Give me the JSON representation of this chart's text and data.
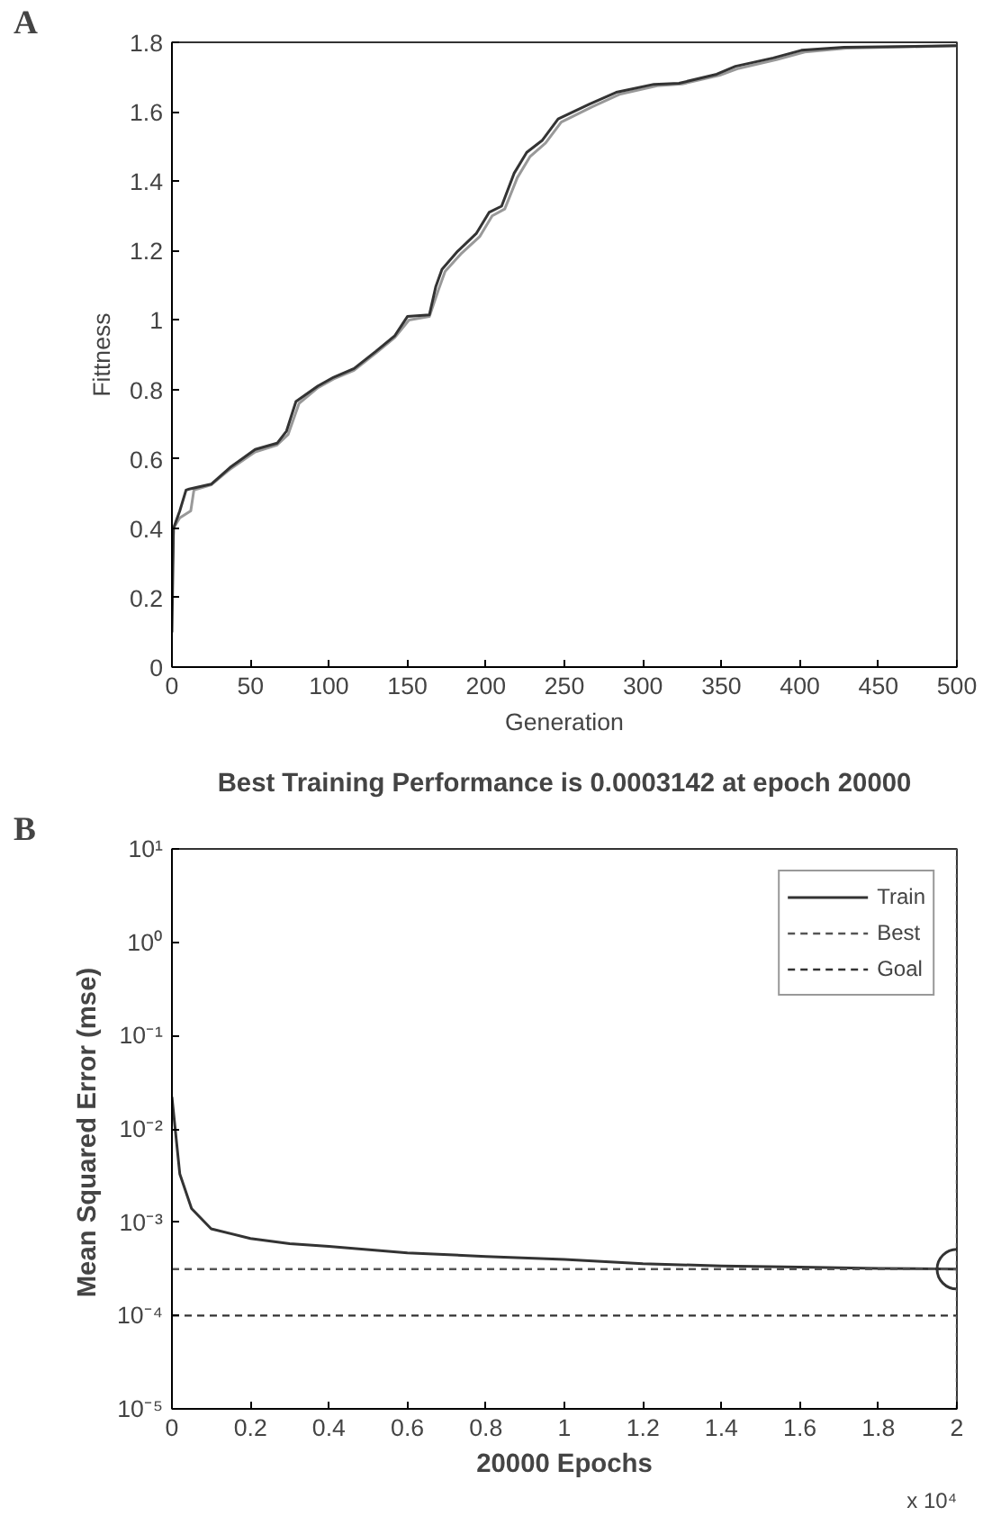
{
  "chart_data": [
    {
      "type": "line",
      "xlabel": "Generation",
      "ylabel": "Fittness",
      "annotations": [
        "A"
      ],
      "xlim": [
        0,
        500
      ],
      "ylim": [
        0,
        1.8
      ],
      "xticks": [
        0,
        50,
        100,
        150,
        200,
        250,
        300,
        350,
        400,
        450,
        500
      ],
      "yticks": [
        0,
        0.2,
        0.4,
        0.6,
        0.8,
        1,
        1.2,
        1.4,
        1.6,
        1.8
      ],
      "grid": false,
      "legend": false,
      "series": [
        {
          "color": "#999999",
          "x": [
            0,
            1,
            5,
            12,
            14,
            25,
            37,
            53,
            67,
            74,
            81,
            93,
            103,
            116,
            130,
            142,
            151,
            164,
            170,
            174,
            184,
            196,
            204,
            212,
            220,
            228,
            238,
            248,
            268,
            285,
            309,
            325,
            349,
            361,
            385,
            403,
            430,
            500
          ],
          "values": [
            0.25,
            0.4,
            0.43,
            0.45,
            0.51,
            0.525,
            0.57,
            0.62,
            0.64,
            0.67,
            0.76,
            0.805,
            0.83,
            0.855,
            0.905,
            0.95,
            1.0,
            1.01,
            1.09,
            1.14,
            1.19,
            1.24,
            1.3,
            1.32,
            1.41,
            1.47,
            1.51,
            1.57,
            1.615,
            1.65,
            1.675,
            1.68,
            1.705,
            1.725,
            1.75,
            1.772,
            1.783,
            1.79
          ]
        },
        {
          "color": "#333333",
          "x": [
            0,
            1,
            5,
            9,
            11,
            25,
            37,
            53,
            67,
            73,
            79,
            93,
            103,
            116,
            130,
            142,
            150,
            164,
            168,
            172,
            182,
            194,
            202,
            210,
            218,
            226,
            236,
            246,
            266,
            283,
            307,
            323,
            347,
            359,
            383,
            401,
            428,
            500
          ],
          "values": [
            0.1,
            0.4,
            0.45,
            0.51,
            0.513,
            0.527,
            0.575,
            0.627,
            0.645,
            0.68,
            0.765,
            0.81,
            0.835,
            0.86,
            0.91,
            0.955,
            1.01,
            1.015,
            1.095,
            1.146,
            1.198,
            1.25,
            1.31,
            1.328,
            1.423,
            1.483,
            1.518,
            1.579,
            1.622,
            1.656,
            1.679,
            1.682,
            1.708,
            1.731,
            1.755,
            1.777,
            1.786,
            1.79
          ]
        }
      ]
    },
    {
      "type": "line",
      "title": "Best Training Performance is 0.0003142 at epoch 20000",
      "xlabel": "20000 Epochs",
      "ylabel": "Mean Squared Error  (mse)",
      "annotations": [
        "B",
        "x 10⁴"
      ],
      "log": "y",
      "xlim": [
        0,
        2
      ],
      "ylim": [
        1e-05,
        10
      ],
      "xticks": [
        0,
        0.2,
        0.4,
        0.6,
        0.8,
        1,
        1.2,
        1.4,
        1.6,
        1.8,
        2
      ],
      "yticks": [
        {
          "value": 1e-05,
          "label": "10⁻⁵"
        },
        {
          "value": 0.0001,
          "label": "10⁻⁴"
        },
        {
          "value": 0.001,
          "label": "10⁻³"
        },
        {
          "value": 0.01,
          "label": "10⁻²"
        },
        {
          "value": 0.1,
          "label": "10⁻¹"
        },
        {
          "value": 1,
          "label": "10⁰"
        },
        {
          "value": 10,
          "label": "10¹"
        }
      ],
      "grid": false,
      "legend": "top right",
      "series": [
        {
          "name": "Train",
          "color": "#333333",
          "x": [
            0,
            0.02,
            0.05,
            0.1,
            0.2,
            0.3,
            0.4,
            0.6,
            0.8,
            1.0,
            1.2,
            1.4,
            1.6,
            1.8,
            2.0
          ],
          "values": [
            0.022,
            0.0033,
            0.0014,
            0.00085,
            0.00067,
            0.00059,
            0.00055,
            0.00047,
            0.00043,
            0.0004,
            0.00036,
            0.00034,
            0.00033,
            0.00032,
            0.0003142
          ]
        },
        {
          "type": "scatter",
          "marker": "circle",
          "color": "#333333",
          "x": [
            2
          ],
          "values": [
            0.0003142
          ]
        }
      ],
      "ref_lines": [
        {
          "axis": "y",
          "value": 0.0003142,
          "label": "Best",
          "color": "#555555",
          "line_style": "dashed"
        },
        {
          "axis": "y",
          "value": 0.0001,
          "label": "Goal",
          "color": "#333333",
          "line_style": "dashed"
        },
        {
          "axis": "x",
          "value": 2,
          "label": null,
          "color": "#555555",
          "line_style": "dotted"
        }
      ]
    }
  ]
}
